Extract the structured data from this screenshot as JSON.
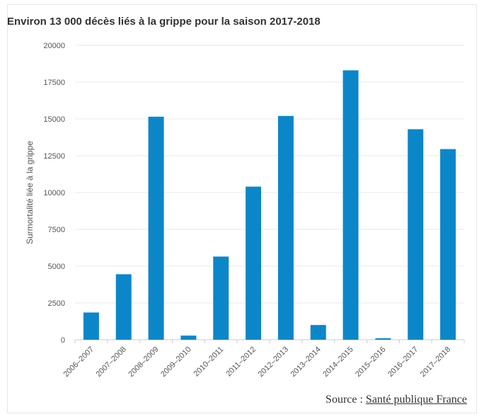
{
  "chart_data": {
    "type": "bar",
    "title": "Environ 13 000 décès liés à la grippe pour la saison 2017-2018",
    "xlabel": "",
    "ylabel": "Surmortalité liée à la grippe",
    "categories": [
      "2006–2007",
      "2007–2008",
      "2008–2009",
      "2009–2010",
      "2010–2011",
      "2011–2012",
      "2012–2013",
      "2013–2014",
      "2014–2015",
      "2015–2016",
      "2016–2017",
      "2017–2018"
    ],
    "values": [
      1850,
      4450,
      15150,
      280,
      5650,
      10400,
      15200,
      1000,
      18300,
      100,
      14300,
      12950
    ],
    "ylim": [
      0,
      20000
    ],
    "yticks": [
      0,
      2500,
      5000,
      7500,
      10000,
      12500,
      15000,
      17500,
      20000
    ],
    "ytick_labels": [
      "0",
      "2500",
      "5000",
      "7500",
      "10000",
      "12500",
      "15000",
      "17500",
      "20000"
    ],
    "bar_color": "#0b87c9",
    "grid": true,
    "legend": "none"
  },
  "source": {
    "prefix": "Source : ",
    "link": "Santé publique France"
  }
}
